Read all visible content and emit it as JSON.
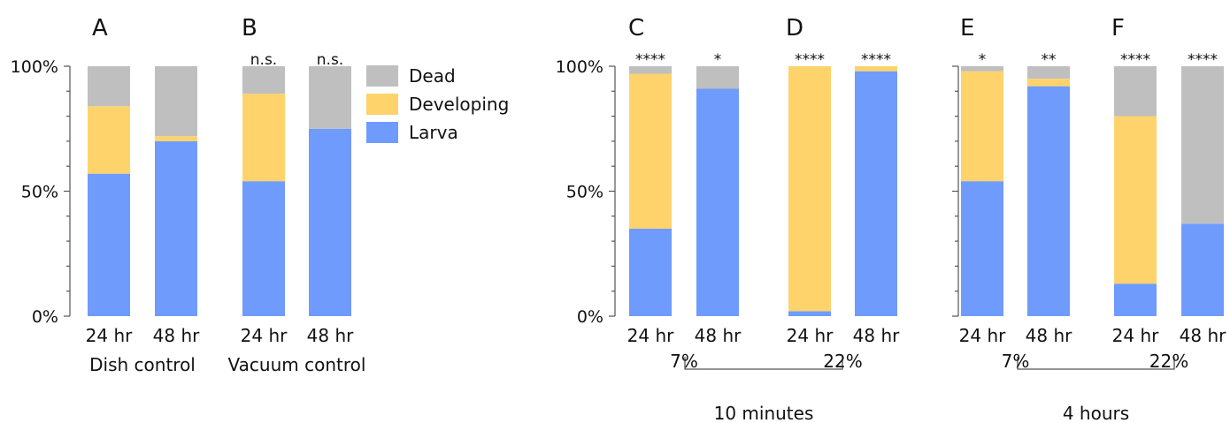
{
  "colors": {
    "dead": "#BFBFBF",
    "developing": "#FFD36B",
    "larva": "#6F9BFC",
    "axis": "#555555"
  },
  "legend": {
    "position": "top-center",
    "items": [
      {
        "key": "dead",
        "label": "Dead"
      },
      {
        "key": "developing",
        "label": "Developing"
      },
      {
        "key": "larva",
        "label": "Larva"
      }
    ]
  },
  "y_ticks": [
    "100%",
    "50%",
    "0%"
  ],
  "chart_data": [
    {
      "type": "bar",
      "stacked": true,
      "panel": "A",
      "categories": [
        "24 hr",
        "48 hr"
      ],
      "group_label": "Dish control",
      "significance": [
        "",
        ""
      ],
      "series": [
        {
          "key": "larva",
          "name": "Larva",
          "values": [
            57,
            70
          ]
        },
        {
          "key": "developing",
          "name": "Developing",
          "values": [
            27,
            2
          ]
        },
        {
          "key": "dead",
          "name": "Dead",
          "values": [
            16,
            28
          ]
        }
      ],
      "ylim": [
        0,
        100
      ]
    },
    {
      "type": "bar",
      "stacked": true,
      "panel": "B",
      "categories": [
        "24 hr",
        "48 hr"
      ],
      "group_label": "Vacuum control",
      "significance": [
        "n.s.",
        "n.s."
      ],
      "series": [
        {
          "key": "larva",
          "name": "Larva",
          "values": [
            54,
            75
          ]
        },
        {
          "key": "developing",
          "name": "Developing",
          "values": [
            35,
            0
          ]
        },
        {
          "key": "dead",
          "name": "Dead",
          "values": [
            11,
            25
          ]
        }
      ],
      "ylim": [
        0,
        100
      ]
    },
    {
      "type": "bar",
      "stacked": true,
      "panel": "C",
      "categories": [
        "24 hr",
        "48 hr"
      ],
      "group_label": "7%",
      "significance": [
        "****",
        "*"
      ],
      "series": [
        {
          "key": "larva",
          "name": "Larva",
          "values": [
            35,
            91
          ]
        },
        {
          "key": "developing",
          "name": "Developing",
          "values": [
            62,
            0
          ]
        },
        {
          "key": "dead",
          "name": "Dead",
          "values": [
            3,
            9
          ]
        }
      ],
      "ylim": [
        0,
        100
      ]
    },
    {
      "type": "bar",
      "stacked": true,
      "panel": "D",
      "categories": [
        "24 hr",
        "48 hr"
      ],
      "group_label": "22%",
      "significance": [
        "****",
        "****"
      ],
      "series": [
        {
          "key": "larva",
          "name": "Larva",
          "values": [
            2,
            98
          ]
        },
        {
          "key": "developing",
          "name": "Developing",
          "values": [
            98,
            2
          ]
        },
        {
          "key": "dead",
          "name": "Dead",
          "values": [
            0,
            0
          ]
        }
      ],
      "ylim": [
        0,
        100
      ]
    },
    {
      "type": "bar",
      "stacked": true,
      "panel": "E",
      "categories": [
        "24 hr",
        "48 hr"
      ],
      "group_label": "7%",
      "significance": [
        "*",
        "**"
      ],
      "series": [
        {
          "key": "larva",
          "name": "Larva",
          "values": [
            54,
            92
          ]
        },
        {
          "key": "developing",
          "name": "Developing",
          "values": [
            44,
            3
          ]
        },
        {
          "key": "dead",
          "name": "Dead",
          "values": [
            2,
            5
          ]
        }
      ],
      "ylim": [
        0,
        100
      ]
    },
    {
      "type": "bar",
      "stacked": true,
      "panel": "F",
      "categories": [
        "24 hr",
        "48 hr"
      ],
      "group_label": "22%",
      "significance": [
        "****",
        "****"
      ],
      "series": [
        {
          "key": "larva",
          "name": "Larva",
          "values": [
            13,
            37
          ]
        },
        {
          "key": "developing",
          "name": "Developing",
          "values": [
            67,
            0
          ]
        },
        {
          "key": "dead",
          "name": "Dead",
          "values": [
            20,
            63
          ]
        }
      ],
      "ylim": [
        0,
        100
      ]
    }
  ],
  "brackets": [
    {
      "label": "10 minutes",
      "spans_panels": [
        "C",
        "D"
      ]
    },
    {
      "label": "4 hours",
      "spans_panels": [
        "E",
        "F"
      ]
    }
  ]
}
